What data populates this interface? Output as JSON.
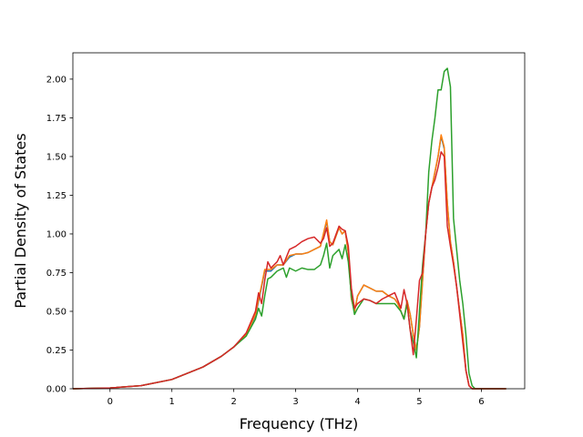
{
  "chart_data": {
    "type": "line",
    "title": "",
    "xlabel": "Frequency (THz)",
    "ylabel": "Partial Density of States",
    "xlim": [
      -0.6,
      6.7
    ],
    "ylim": [
      0,
      2.17
    ],
    "xticks": [
      0,
      1,
      2,
      3,
      4,
      5,
      6
    ],
    "xtick_labels": [
      "0",
      "1",
      "2",
      "3",
      "4",
      "5",
      "6"
    ],
    "yticks": [
      0.0,
      0.25,
      0.5,
      0.75,
      1.0,
      1.25,
      1.5,
      1.75,
      2.0
    ],
    "ytick_labels": [
      "0.00",
      "0.25",
      "0.50",
      "0.75",
      "1.00",
      "1.25",
      "1.50",
      "1.75",
      "2.00"
    ],
    "grid": false,
    "legend": "none",
    "series": [
      {
        "color": "#1f77b4",
        "x": [
          -0.6,
          0,
          0.5,
          1,
          1.5,
          1.8,
          2,
          2.2,
          2.35,
          2.45,
          2.5,
          2.6,
          2.7,
          2.8,
          2.9,
          3.0,
          3.1,
          3.2,
          3.3,
          3.4,
          3.5,
          3.55,
          3.6,
          3.7,
          3.75,
          3.8,
          3.85,
          3.9,
          3.95,
          4.0,
          4.1,
          4.2,
          4.3,
          4.4,
          4.5,
          4.6,
          4.65,
          4.7,
          4.75,
          4.8,
          4.85,
          4.9,
          4.95,
          5.0,
          5.05,
          5.1,
          5.15,
          5.2,
          5.25,
          5.3,
          5.35,
          5.4,
          5.45,
          5.5,
          5.55,
          5.6,
          5.65,
          5.7,
          5.75,
          5.8,
          5.85,
          5.9,
          6.0,
          6.4
        ],
        "y": [
          0,
          0.005,
          0.02,
          0.06,
          0.14,
          0.21,
          0.27,
          0.35,
          0.47,
          0.66,
          0.76,
          0.76,
          0.8,
          0.8,
          0.85,
          0.87,
          0.87,
          0.88,
          0.9,
          0.92,
          1.08,
          0.95,
          0.93,
          1.04,
          1.0,
          1.02,
          0.88,
          0.58,
          0.5,
          0.6,
          0.67,
          0.65,
          0.63,
          0.63,
          0.6,
          0.58,
          0.55,
          0.5,
          0.45,
          0.57,
          0.48,
          0.35,
          0.25,
          0.4,
          0.7,
          1.0,
          1.2,
          1.3,
          1.4,
          1.5,
          1.63,
          1.55,
          1.2,
          0.95,
          0.82,
          0.66,
          0.5,
          0.35,
          0.12,
          0.02,
          0,
          0,
          0,
          0
        ]
      },
      {
        "color": "#ff7f0e",
        "x": [
          -0.6,
          0,
          0.5,
          1,
          1.5,
          1.8,
          2,
          2.2,
          2.35,
          2.45,
          2.5,
          2.6,
          2.7,
          2.8,
          2.9,
          3.0,
          3.1,
          3.2,
          3.3,
          3.4,
          3.5,
          3.55,
          3.6,
          3.7,
          3.75,
          3.8,
          3.85,
          3.9,
          3.95,
          4.0,
          4.1,
          4.2,
          4.3,
          4.4,
          4.5,
          4.6,
          4.65,
          4.7,
          4.75,
          4.8,
          4.85,
          4.9,
          4.95,
          5.0,
          5.05,
          5.1,
          5.15,
          5.2,
          5.25,
          5.3,
          5.35,
          5.4,
          5.45,
          5.5,
          5.55,
          5.6,
          5.65,
          5.7,
          5.75,
          5.8,
          5.85,
          5.9,
          6.0,
          6.4
        ],
        "y": [
          0,
          0.005,
          0.02,
          0.06,
          0.14,
          0.21,
          0.27,
          0.35,
          0.48,
          0.67,
          0.77,
          0.77,
          0.8,
          0.8,
          0.86,
          0.87,
          0.87,
          0.88,
          0.9,
          0.92,
          1.09,
          0.95,
          0.93,
          1.04,
          1.0,
          1.02,
          0.88,
          0.58,
          0.5,
          0.6,
          0.67,
          0.65,
          0.63,
          0.63,
          0.6,
          0.58,
          0.55,
          0.5,
          0.45,
          0.57,
          0.48,
          0.35,
          0.25,
          0.4,
          0.7,
          1.0,
          1.2,
          1.3,
          1.4,
          1.5,
          1.64,
          1.56,
          1.2,
          0.95,
          0.82,
          0.66,
          0.5,
          0.35,
          0.12,
          0.02,
          0,
          0,
          0,
          0
        ]
      },
      {
        "color": "#2ca02c",
        "x": [
          -0.6,
          0,
          0.5,
          1,
          1.5,
          1.8,
          2,
          2.2,
          2.35,
          2.4,
          2.45,
          2.5,
          2.55,
          2.6,
          2.7,
          2.8,
          2.85,
          2.9,
          3.0,
          3.1,
          3.2,
          3.3,
          3.4,
          3.45,
          3.5,
          3.55,
          3.6,
          3.7,
          3.75,
          3.8,
          3.85,
          3.9,
          3.95,
          4.0,
          4.1,
          4.2,
          4.3,
          4.4,
          4.5,
          4.6,
          4.7,
          4.75,
          4.8,
          4.85,
          4.9,
          4.95,
          5.0,
          5.05,
          5.1,
          5.15,
          5.2,
          5.25,
          5.3,
          5.35,
          5.4,
          5.45,
          5.5,
          5.55,
          5.6,
          5.65,
          5.7,
          5.75,
          5.8,
          5.85,
          5.9,
          6.0,
          6.4
        ],
        "y": [
          0,
          0.005,
          0.02,
          0.06,
          0.14,
          0.21,
          0.27,
          0.34,
          0.45,
          0.52,
          0.47,
          0.6,
          0.71,
          0.72,
          0.76,
          0.78,
          0.72,
          0.78,
          0.76,
          0.78,
          0.77,
          0.77,
          0.8,
          0.86,
          0.94,
          0.78,
          0.86,
          0.9,
          0.84,
          0.93,
          0.82,
          0.6,
          0.48,
          0.52,
          0.58,
          0.57,
          0.55,
          0.55,
          0.55,
          0.55,
          0.5,
          0.45,
          0.55,
          0.38,
          0.3,
          0.2,
          0.5,
          0.8,
          1.0,
          1.4,
          1.6,
          1.75,
          1.93,
          1.93,
          2.05,
          2.07,
          1.95,
          1.1,
          0.9,
          0.7,
          0.55,
          0.35,
          0.1,
          0.02,
          0,
          0,
          0
        ]
      },
      {
        "color": "#d62728",
        "x": [
          -0.6,
          0,
          0.5,
          1,
          1.5,
          1.8,
          2,
          2.2,
          2.35,
          2.4,
          2.45,
          2.5,
          2.55,
          2.6,
          2.7,
          2.75,
          2.8,
          2.9,
          3.0,
          3.1,
          3.2,
          3.3,
          3.4,
          3.45,
          3.5,
          3.55,
          3.6,
          3.7,
          3.75,
          3.8,
          3.85,
          3.9,
          3.95,
          4.0,
          4.1,
          4.2,
          4.3,
          4.4,
          4.5,
          4.6,
          4.65,
          4.7,
          4.75,
          4.8,
          4.85,
          4.9,
          4.95,
          5.0,
          5.05,
          5.1,
          5.15,
          5.2,
          5.25,
          5.3,
          5.35,
          5.4,
          5.45,
          5.5,
          5.55,
          5.6,
          5.65,
          5.7,
          5.75,
          5.8,
          5.85,
          5.9,
          6.0,
          6.4
        ],
        "y": [
          0,
          0.005,
          0.02,
          0.06,
          0.14,
          0.21,
          0.27,
          0.36,
          0.5,
          0.62,
          0.55,
          0.7,
          0.82,
          0.78,
          0.82,
          0.86,
          0.8,
          0.9,
          0.92,
          0.95,
          0.97,
          0.98,
          0.94,
          0.97,
          1.04,
          0.92,
          0.94,
          1.05,
          1.03,
          1.02,
          0.92,
          0.65,
          0.52,
          0.55,
          0.58,
          0.57,
          0.55,
          0.58,
          0.6,
          0.62,
          0.57,
          0.52,
          0.64,
          0.55,
          0.38,
          0.22,
          0.45,
          0.7,
          0.75,
          1.0,
          1.2,
          1.3,
          1.35,
          1.43,
          1.53,
          1.5,
          1.05,
          0.92,
          0.8,
          0.66,
          0.48,
          0.3,
          0.12,
          0.02,
          0,
          0,
          0,
          0
        ]
      }
    ]
  }
}
